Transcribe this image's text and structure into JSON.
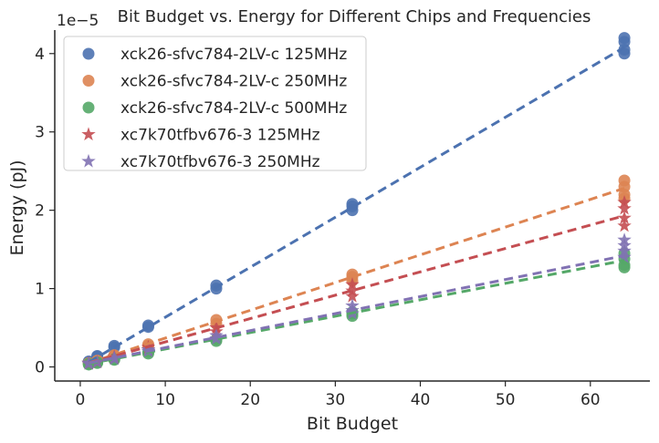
{
  "chart_data": {
    "type": "scatter",
    "title": "Bit Budget vs. Energy for Different Chips and Frequencies",
    "xlabel": "Bit Budget",
    "ylabel": "Energy (pJ)",
    "y_offset_label": "1e−5",
    "xlim": [
      -3,
      67
    ],
    "ylim": [
      -0.18,
      4.3
    ],
    "xticks": [
      0,
      10,
      20,
      30,
      40,
      50,
      60
    ],
    "yticks": [
      0,
      1,
      2,
      3,
      4
    ],
    "grid": false,
    "legend_position": "top-left",
    "series": [
      {
        "name": "xck26-sfvc784-2LV-c 125MHz",
        "color": "#4c72b0",
        "marker": "circle",
        "fit": {
          "x": [
            1,
            64
          ],
          "y": [
            0.06,
            4.08
          ]
        },
        "points": [
          [
            1,
            0.06
          ],
          [
            1,
            0.07
          ],
          [
            2,
            0.13
          ],
          [
            2,
            0.14
          ],
          [
            4,
            0.25
          ],
          [
            4,
            0.27
          ],
          [
            8,
            0.51
          ],
          [
            8,
            0.53
          ],
          [
            16,
            1.0
          ],
          [
            16,
            1.04
          ],
          [
            32,
            2.0
          ],
          [
            32,
            2.05
          ],
          [
            32,
            2.08
          ],
          [
            64,
            4.0
          ],
          [
            64,
            4.05
          ],
          [
            64,
            4.15
          ],
          [
            64,
            4.2
          ]
        ]
      },
      {
        "name": "xck26-sfvc784-2LV-c 250MHz",
        "color": "#dd8452",
        "marker": "circle",
        "fit": {
          "x": [
            1,
            64
          ],
          "y": [
            0.05,
            2.28
          ]
        },
        "points": [
          [
            1,
            0.04
          ],
          [
            1,
            0.05
          ],
          [
            2,
            0.07
          ],
          [
            2,
            0.08
          ],
          [
            4,
            0.14
          ],
          [
            4,
            0.15
          ],
          [
            8,
            0.27
          ],
          [
            8,
            0.29
          ],
          [
            16,
            0.55
          ],
          [
            16,
            0.6
          ],
          [
            32,
            1.1
          ],
          [
            32,
            1.15
          ],
          [
            32,
            1.18
          ],
          [
            64,
            2.15
          ],
          [
            64,
            2.2
          ],
          [
            64,
            2.3
          ],
          [
            64,
            2.38
          ]
        ]
      },
      {
        "name": "xck26-sfvc784-2LV-c 500MHz",
        "color": "#55a868",
        "marker": "circle",
        "fit": {
          "x": [
            1,
            64
          ],
          "y": [
            0.04,
            1.36
          ]
        },
        "points": [
          [
            1,
            0.03
          ],
          [
            1,
            0.04
          ],
          [
            2,
            0.05
          ],
          [
            2,
            0.06
          ],
          [
            4,
            0.09
          ],
          [
            4,
            0.1
          ],
          [
            8,
            0.17
          ],
          [
            8,
            0.19
          ],
          [
            16,
            0.33
          ],
          [
            16,
            0.35
          ],
          [
            32,
            0.65
          ],
          [
            32,
            0.68
          ],
          [
            32,
            0.7
          ],
          [
            64,
            1.27
          ],
          [
            64,
            1.3
          ],
          [
            64,
            1.38
          ],
          [
            64,
            1.45
          ]
        ]
      },
      {
        "name": "xc7k70tfbv676-3 125MHz",
        "color": "#c44e52",
        "marker": "star",
        "fit": {
          "x": [
            1,
            64
          ],
          "y": [
            0.05,
            1.93
          ]
        },
        "points": [
          [
            1,
            0.04
          ],
          [
            1,
            0.05
          ],
          [
            2,
            0.06
          ],
          [
            4,
            0.11
          ],
          [
            4,
            0.13
          ],
          [
            8,
            0.22
          ],
          [
            8,
            0.25
          ],
          [
            16,
            0.45
          ],
          [
            16,
            0.5
          ],
          [
            32,
            0.9
          ],
          [
            32,
            0.97
          ],
          [
            32,
            1.05
          ],
          [
            64,
            1.8
          ],
          [
            64,
            1.9
          ],
          [
            64,
            2.02
          ],
          [
            64,
            2.1
          ]
        ]
      },
      {
        "name": "xc7k70tfbv676-3 250MHz",
        "color": "#8172b3",
        "marker": "star",
        "fit": {
          "x": [
            1,
            64
          ],
          "y": [
            0.05,
            1.42
          ]
        },
        "points": [
          [
            1,
            0.04
          ],
          [
            1,
            0.05
          ],
          [
            2,
            0.06
          ],
          [
            4,
            0.1
          ],
          [
            4,
            0.12
          ],
          [
            8,
            0.2
          ],
          [
            8,
            0.22
          ],
          [
            16,
            0.36
          ],
          [
            16,
            0.4
          ],
          [
            32,
            0.68
          ],
          [
            32,
            0.72
          ],
          [
            32,
            0.78
          ],
          [
            64,
            1.4
          ],
          [
            64,
            1.48
          ],
          [
            64,
            1.55
          ],
          [
            64,
            1.62
          ]
        ]
      }
    ]
  }
}
